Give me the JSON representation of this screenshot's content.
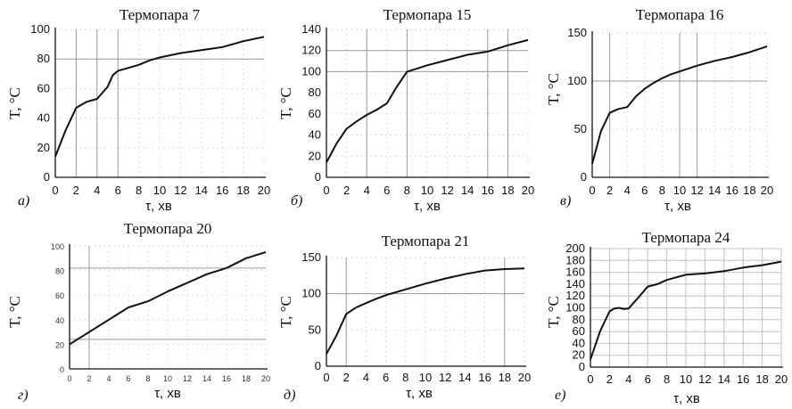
{
  "chart_data": [
    {
      "type": "line",
      "panel_label": "а)",
      "title": "Термопара 7",
      "xlabel": "τ, хв",
      "ylabel": "T, °C",
      "xlim": [
        0,
        20
      ],
      "ylim": [
        0,
        100
      ],
      "xticks": [
        0,
        2,
        4,
        6,
        8,
        10,
        12,
        14,
        16,
        18,
        20
      ],
      "yticks": [
        0,
        20,
        40,
        60,
        80,
        100
      ],
      "x": [
        0,
        1,
        2,
        3,
        4,
        5,
        5.5,
        6,
        6.5,
        7,
        8,
        9,
        10,
        12,
        14,
        16,
        18,
        20
      ],
      "y": [
        14,
        32,
        47,
        51,
        53,
        61,
        69,
        72,
        73,
        74,
        76,
        79,
        81,
        84,
        86,
        88,
        92,
        95
      ]
    },
    {
      "type": "line",
      "panel_label": "б)",
      "title": "Термопара 15",
      "xlabel": "τ, хв",
      "ylabel": "T, °C",
      "xlim": [
        0,
        20
      ],
      "ylim": [
        0,
        140
      ],
      "xticks": [
        0,
        2,
        4,
        6,
        8,
        10,
        12,
        14,
        16,
        18,
        20
      ],
      "yticks": [
        0,
        20,
        40,
        60,
        80,
        100,
        120,
        140
      ],
      "x": [
        0,
        1,
        2,
        3,
        4,
        5,
        6,
        7,
        8,
        9,
        10,
        12,
        14,
        16,
        18,
        20
      ],
      "y": [
        14,
        32,
        46,
        53,
        59,
        64,
        70,
        86,
        100,
        103,
        106,
        111,
        116,
        119,
        125,
        130
      ]
    },
    {
      "type": "line",
      "panel_label": "в)",
      "title": "Термопара 16",
      "xlabel": "τ, хв",
      "ylabel": "T, °C",
      "xlim": [
        0,
        20
      ],
      "ylim": [
        0,
        150
      ],
      "xticks": [
        0,
        2,
        4,
        6,
        8,
        10,
        12,
        14,
        16,
        18,
        20
      ],
      "yticks": [
        0,
        50,
        100,
        150
      ],
      "x": [
        0,
        1,
        2,
        3,
        4,
        5,
        6,
        7,
        8,
        9,
        10,
        12,
        14,
        16,
        18,
        20
      ],
      "y": [
        14,
        48,
        67,
        71,
        73,
        84,
        92,
        98,
        103,
        107,
        110,
        116,
        121,
        125,
        130,
        136
      ]
    },
    {
      "type": "line",
      "panel_label": "г)",
      "title": "Термопара 20",
      "xlabel": "τ, хв",
      "ylabel": "T, °C",
      "xlim": [
        0,
        20
      ],
      "ylim": [
        0,
        100
      ],
      "xticks": [
        0,
        2,
        4,
        6,
        8,
        10,
        12,
        14,
        16,
        18,
        20
      ],
      "yticks": [
        0,
        20,
        40,
        60,
        80,
        100
      ],
      "x": [
        0,
        2,
        4,
        6,
        8,
        10,
        12,
        14,
        16,
        18,
        20
      ],
      "y": [
        20,
        30,
        40,
        50,
        55,
        63,
        70,
        77,
        82,
        90,
        95
      ]
    },
    {
      "type": "line",
      "panel_label": "д)",
      "title": "Термопара 21",
      "xlabel": "τ, хв",
      "ylabel": "T, °C",
      "xlim": [
        0,
        20
      ],
      "ylim": [
        0,
        150
      ],
      "xticks": [
        0,
        2,
        4,
        6,
        8,
        10,
        12,
        14,
        16,
        18,
        20
      ],
      "yticks": [
        0,
        50,
        100,
        150
      ],
      "x": [
        0,
        1,
        2,
        3,
        4,
        5,
        6,
        7,
        8,
        10,
        12,
        14,
        16,
        18,
        20
      ],
      "y": [
        17,
        42,
        72,
        81,
        87,
        93,
        98,
        102,
        106,
        114,
        121,
        127,
        132,
        134,
        135
      ]
    },
    {
      "type": "line",
      "panel_label": "е)",
      "title": "Термопара 24",
      "xlabel": "τ, хв",
      "ylabel": "T, °C",
      "xlim": [
        0,
        20
      ],
      "ylim": [
        0,
        200
      ],
      "xticks": [
        0,
        2,
        4,
        6,
        8,
        10,
        12,
        14,
        16,
        18,
        20
      ],
      "yticks": [
        0,
        20,
        40,
        60,
        80,
        100,
        120,
        140,
        160,
        180,
        200
      ],
      "x": [
        0,
        1,
        2,
        2.5,
        3,
        3.5,
        4,
        5,
        6,
        7,
        8,
        10,
        12,
        14,
        16,
        18,
        20
      ],
      "y": [
        13,
        60,
        94,
        99,
        100,
        98,
        99,
        117,
        136,
        140,
        147,
        156,
        158,
        162,
        168,
        172,
        178
      ]
    }
  ]
}
